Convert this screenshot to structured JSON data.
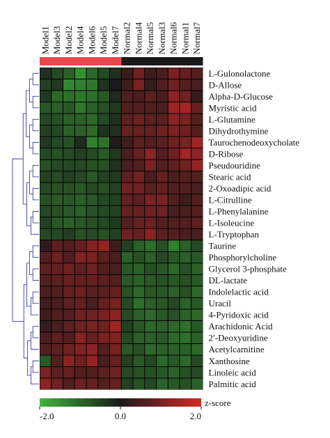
{
  "chart_data": {
    "type": "heatmap",
    "title": "",
    "columns": [
      "Model1",
      "Model3",
      "Model2",
      "Model4",
      "Model6",
      "Model5",
      "Model7",
      "Normal2",
      "Normal4",
      "Normal5",
      "Normal3",
      "Normal6",
      "Normal1",
      "Normal7"
    ],
    "groups": [
      {
        "name": "Model",
        "count": 7,
        "color": "#e8474e"
      },
      {
        "name": "Normal",
        "count": 7,
        "color": "#1a1a1a"
      }
    ],
    "rows": [
      "L-Gulonolactone",
      "D-Allose",
      "Alpha-D-Glucose",
      "Myristic acid",
      "L-Glutamine",
      "Dihydrothymine",
      "Taurochenodeoxycholate",
      "D-Ribose",
      "Pseudouridine",
      "Stearic acid",
      "2-Oxoadipic acid",
      "L-Citrulline",
      "L-Phenylalanine",
      "L-Isoleucine",
      "L-Tryptophan",
      "Taurine",
      "Phosphorylcholine",
      "Glycerol 3-phosphate",
      "DL-lactate",
      "Indolelactic acid",
      "Uracil",
      "4-Pyridoxic acid",
      "Arachidonic Acid",
      "2′-Deoxyuridine",
      "Acetylcarnitine",
      "Xanthosine",
      "Linoleic acid",
      "Palmitic acid"
    ],
    "values": [
      [
        -0.3,
        -0.6,
        -0.9,
        -1.5,
        -1.0,
        -0.6,
        -0.3,
        0.3,
        0.9,
        0.4,
        0.5,
        1.0,
        0.8,
        0.6
      ],
      [
        -0.5,
        -0.4,
        -1.4,
        -1.3,
        -1.2,
        -0.3,
        0.0,
        0.4,
        1.0,
        0.3,
        0.6,
        0.9,
        0.6,
        0.5
      ],
      [
        -0.4,
        -1.0,
        -1.1,
        -1.2,
        -1.1,
        -0.8,
        -0.2,
        0.6,
        0.5,
        0.7,
        0.5,
        1.2,
        0.9,
        0.3
      ],
      [
        -0.8,
        -0.9,
        -0.8,
        -1.2,
        -0.9,
        -0.7,
        -0.4,
        0.6,
        0.6,
        0.6,
        0.5,
        1.4,
        1.5,
        0.8
      ],
      [
        -0.6,
        -0.7,
        -0.9,
        -0.9,
        -1.0,
        -0.6,
        -0.3,
        0.7,
        0.9,
        0.7,
        0.7,
        1.2,
        1.0,
        0.6
      ],
      [
        -0.5,
        -0.6,
        -0.9,
        -0.9,
        -1.0,
        -0.3,
        -0.3,
        0.8,
        0.8,
        0.8,
        0.9,
        1.0,
        0.9,
        0.6
      ],
      [
        -0.4,
        -0.6,
        -0.7,
        -0.2,
        -1.3,
        -1.1,
        0.1,
        0.4,
        0.7,
        0.6,
        0.7,
        0.9,
        1.0,
        1.4
      ],
      [
        -0.6,
        -0.7,
        -0.6,
        -0.5,
        -0.6,
        -0.8,
        -0.4,
        0.5,
        0.8,
        1.2,
        0.6,
        0.9,
        1.4,
        1.2
      ],
      [
        -0.7,
        -0.6,
        -0.6,
        -0.6,
        -0.7,
        -0.7,
        -0.3,
        0.5,
        0.6,
        1.0,
        0.6,
        0.7,
        0.9,
        1.3
      ],
      [
        -0.5,
        -0.6,
        -0.5,
        -0.6,
        -0.8,
        -0.5,
        -0.4,
        0.7,
        0.9,
        0.5,
        0.8,
        0.5,
        0.6,
        0.6
      ],
      [
        -0.6,
        -0.7,
        -0.7,
        -0.8,
        -0.6,
        -0.7,
        -0.5,
        0.9,
        0.9,
        0.7,
        0.8,
        0.6,
        0.6,
        0.5
      ],
      [
        -0.7,
        -0.8,
        -0.8,
        -0.9,
        -0.8,
        -0.6,
        -0.5,
        0.8,
        0.7,
        1.0,
        1.0,
        0.6,
        0.4,
        0.6
      ],
      [
        -0.6,
        -0.7,
        -0.8,
        -0.9,
        -0.7,
        -0.6,
        -0.5,
        0.8,
        0.8,
        0.9,
        0.9,
        0.5,
        0.5,
        0.6
      ],
      [
        -0.5,
        -0.8,
        -0.9,
        -0.8,
        -0.7,
        -0.6,
        -0.4,
        0.6,
        0.8,
        0.9,
        0.6,
        0.6,
        0.6,
        0.7
      ],
      [
        -0.6,
        -0.6,
        -0.5,
        -0.7,
        -0.6,
        -0.7,
        -0.5,
        0.9,
        0.8,
        1.2,
        0.7,
        0.6,
        0.5,
        0.5
      ],
      [
        0.2,
        0.7,
        0.6,
        0.8,
        1.1,
        1.3,
        0.4,
        -0.5,
        -0.9,
        -1.1,
        -0.7,
        -1.3,
        -0.9,
        -0.6
      ],
      [
        0.6,
        0.9,
        0.6,
        1.1,
        1.0,
        0.7,
        0.5,
        -0.9,
        -0.7,
        -0.9,
        -0.6,
        -0.8,
        -0.9,
        -0.8
      ],
      [
        0.7,
        0.8,
        0.9,
        0.7,
        0.9,
        0.6,
        0.5,
        -0.8,
        -0.9,
        -0.7,
        -0.8,
        -1.0,
        -0.7,
        -0.9
      ],
      [
        0.6,
        0.7,
        0.8,
        0.8,
        0.8,
        0.7,
        0.6,
        -0.8,
        -0.9,
        -0.8,
        -0.7,
        -0.8,
        -0.7,
        -0.8
      ],
      [
        0.5,
        0.6,
        0.8,
        0.9,
        0.7,
        0.7,
        0.8,
        -0.7,
        -1.0,
        -0.8,
        -0.8,
        -0.9,
        -0.7,
        -1.0
      ],
      [
        0.4,
        0.5,
        0.7,
        0.8,
        0.5,
        0.8,
        1.0,
        -0.6,
        -1.1,
        -0.9,
        -0.8,
        -0.6,
        -0.9,
        -0.8
      ],
      [
        0.4,
        0.6,
        0.6,
        0.9,
        0.9,
        1.0,
        1.2,
        -0.6,
        -0.9,
        -1.0,
        -0.8,
        -0.7,
        -0.9,
        -1.0
      ],
      [
        0.3,
        0.5,
        0.7,
        0.9,
        1.0,
        0.9,
        1.4,
        -0.5,
        -0.8,
        -1.0,
        -0.9,
        -1.0,
        -1.1,
        -0.8
      ],
      [
        0.5,
        0.7,
        0.6,
        1.2,
        0.8,
        1.0,
        1.1,
        -0.6,
        -0.9,
        -0.9,
        -0.8,
        -1.0,
        -1.1,
        -0.9
      ],
      [
        0.6,
        0.7,
        0.9,
        1.1,
        1.2,
        0.6,
        1.0,
        -0.8,
        -0.7,
        -1.0,
        -0.9,
        -0.9,
        -0.9,
        -1.0
      ],
      [
        -0.8,
        0.6,
        1.2,
        0.9,
        1.3,
        0.5,
        0.8,
        -0.5,
        -0.8,
        -0.6,
        -1.0,
        -0.8,
        -1.0,
        -0.6
      ],
      [
        1.0,
        0.7,
        0.8,
        0.6,
        0.6,
        0.7,
        0.9,
        -0.6,
        -0.7,
        -0.7,
        -0.8,
        -0.9,
        -0.7,
        -0.6
      ],
      [
        1.2,
        0.9,
        0.6,
        0.9,
        0.8,
        0.6,
        0.8,
        -0.5,
        -0.7,
        -0.6,
        -0.9,
        -0.8,
        -0.7,
        -0.9
      ]
    ],
    "colorscale": {
      "low": "#3fb53a",
      "mid": "#1a1a1a",
      "high": "#d52a2a",
      "min": -2.0,
      "max": 2.0
    },
    "colorbar": {
      "label": "z-score",
      "ticks": [
        "-2.0",
        "0.0",
        "2.0"
      ]
    },
    "dendrogram": "rows, left side"
  }
}
